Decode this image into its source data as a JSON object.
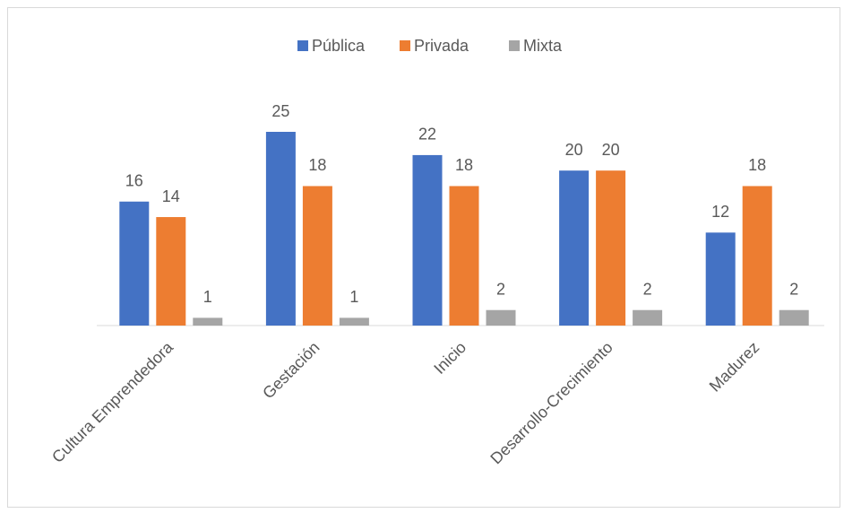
{
  "chart_data": {
    "type": "bar",
    "categories": [
      "Cultura Emprendedora",
      "Gestación",
      "Inicio",
      "Desarrollo-Crecimiento",
      "Madurez"
    ],
    "series": [
      {
        "name": "Pública",
        "color": "#4472c4",
        "values": [
          16,
          25,
          22,
          20,
          12
        ]
      },
      {
        "name": "Privada",
        "color": "#ed7d31",
        "values": [
          14,
          18,
          18,
          20,
          18
        ]
      },
      {
        "name": "Mixta",
        "color": "#a5a5a5",
        "values": [
          1,
          1,
          2,
          2,
          2
        ]
      }
    ],
    "ylim": [
      0,
      25
    ],
    "legend": "top"
  }
}
